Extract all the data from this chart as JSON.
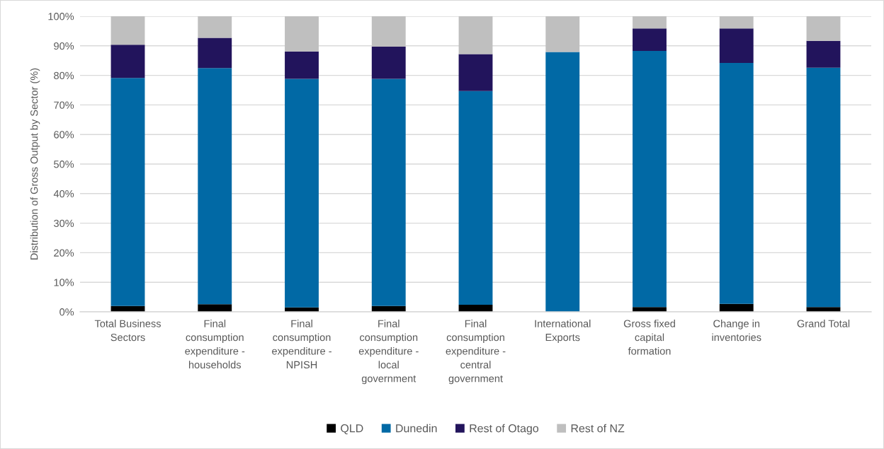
{
  "chart_data": {
    "type": "bar",
    "stacked": true,
    "ylabel": "Distribution of Gross Output by Sector (%)",
    "categories": [
      "Total Business Sectors",
      "Final consumption expenditure - households",
      "Final consumption expenditure - NPISH",
      "Final consumption expenditure - local government",
      "Final consumption expenditure - central government",
      "International Exports",
      "Gross fixed capital formation",
      "Change in inventories",
      "Grand Total"
    ],
    "series": [
      {
        "name": "QLD",
        "color": "#000000",
        "values": [
          2.0,
          2.6,
          1.5,
          2.0,
          2.4,
          0,
          1.6,
          2.7,
          1.6
        ]
      },
      {
        "name": "Dunedin",
        "color": "#0169a5",
        "values": [
          77.1,
          79.9,
          77.3,
          76.8,
          72.3,
          87.9,
          86.7,
          81.5,
          81.0
        ]
      },
      {
        "name": "Rest of Otago",
        "color": "#22145c",
        "values": [
          11.3,
          10.2,
          9.3,
          10.9,
          12.5,
          0,
          7.6,
          11.7,
          9.1
        ]
      },
      {
        "name": "Rest of NZ",
        "color": "#bfbfbf",
        "values": [
          9.6,
          7.3,
          11.9,
          10.3,
          12.8,
          12.1,
          4.1,
          4.1,
          8.3
        ]
      }
    ],
    "ylim": [
      0,
      100
    ],
    "yticks": [
      {
        "value": 0,
        "label": "0%"
      },
      {
        "value": 10,
        "label": "10%"
      },
      {
        "value": 20,
        "label": "20%"
      },
      {
        "value": 30,
        "label": "30%"
      },
      {
        "value": 40,
        "label": "40%"
      },
      {
        "value": 50,
        "label": "50%"
      },
      {
        "value": 60,
        "label": "60%"
      },
      {
        "value": 70,
        "label": "70%"
      },
      {
        "value": 80,
        "label": "80%"
      },
      {
        "value": 90,
        "label": "90%"
      },
      {
        "value": 100,
        "label": "100%"
      }
    ],
    "grid": "y",
    "legend": "bottom"
  }
}
